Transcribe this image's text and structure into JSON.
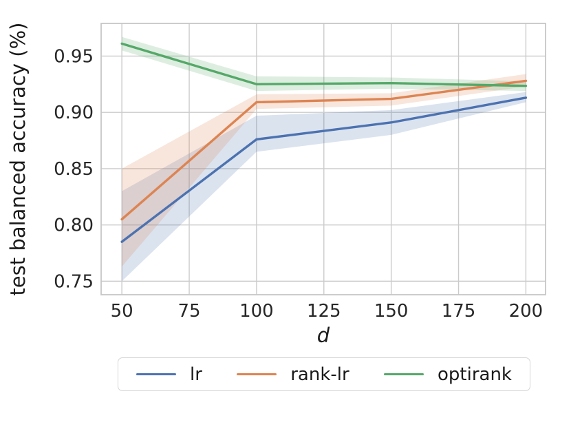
{
  "figure": {
    "background": "#ffffff",
    "text_color": "#262626",
    "grid_color": "#cbcbcb",
    "spine_color": "#c6c6c6"
  },
  "chart_data": {
    "type": "line",
    "title": "",
    "xlabel": "d",
    "ylabel": "test balanced accuracy (%)",
    "grid": true,
    "legend_position": "bottom-center",
    "band_alpha": 0.2,
    "line_width": 3.4,
    "xlim": [
      42.3,
      207.3
    ],
    "ylim": [
      0.738,
      0.979
    ],
    "x_ticks": [
      "50",
      "75",
      "100",
      "125",
      "150",
      "175",
      "200"
    ],
    "y_ticks": [
      "0.75",
      "0.80",
      "0.85",
      "0.90",
      "0.95"
    ],
    "x": [
      50,
      100,
      150,
      200
    ],
    "series": [
      {
        "name": "lr",
        "color": "#4c72b0",
        "y": [
          0.785,
          0.876,
          0.891,
          0.913
        ],
        "lo": [
          0.75,
          0.865,
          0.88,
          0.909
        ],
        "hi": [
          0.83,
          0.897,
          0.902,
          0.918
        ]
      },
      {
        "name": "rank-lr",
        "color": "#dd8452",
        "y": [
          0.805,
          0.909,
          0.912,
          0.928
        ],
        "lo": [
          0.763,
          0.903,
          0.906,
          0.923
        ],
        "hi": [
          0.85,
          0.916,
          0.917,
          0.934
        ]
      },
      {
        "name": "optirank",
        "color": "#55a868",
        "y": [
          0.961,
          0.925,
          0.926,
          0.9235
        ],
        "lo": [
          0.955,
          0.919,
          0.921,
          0.919
        ],
        "hi": [
          0.967,
          0.932,
          0.931,
          0.9275
        ]
      }
    ]
  }
}
